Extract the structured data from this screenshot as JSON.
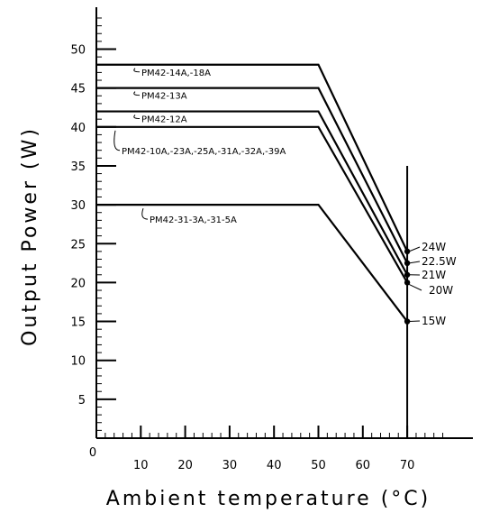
{
  "chart_data": {
    "type": "line",
    "title": "",
    "xlabel": "Ambient temperature (°C)",
    "ylabel": "Output Power (W)",
    "xlim": [
      0,
      80
    ],
    "ylim": [
      0,
      55
    ],
    "x_ticks": [
      0,
      10,
      20,
      30,
      40,
      50,
      60,
      70
    ],
    "y_ticks": [
      5,
      10,
      15,
      20,
      25,
      30,
      35,
      40,
      45,
      50
    ],
    "grid": false,
    "series": [
      {
        "name": "PM42-14A,-18A",
        "x": [
          0,
          50,
          70
        ],
        "y": [
          48,
          48,
          24
        ]
      },
      {
        "name": "PM42-13A",
        "x": [
          0,
          50,
          70
        ],
        "y": [
          45,
          45,
          22.5
        ]
      },
      {
        "name": "PM42-12A",
        "x": [
          0,
          50,
          70
        ],
        "y": [
          42,
          42,
          21
        ]
      },
      {
        "name": "PM42-10A,-23A,-25A,-31A,-32A,-39A",
        "x": [
          0,
          50,
          70
        ],
        "y": [
          40,
          40,
          20
        ]
      },
      {
        "name": "PM42-31-3A,-31-5A",
        "x": [
          0,
          50,
          70
        ],
        "y": [
          30,
          30,
          15
        ]
      }
    ],
    "end_labels": [
      "24W",
      "22.5W",
      "21W",
      "20W",
      "15W"
    ]
  }
}
